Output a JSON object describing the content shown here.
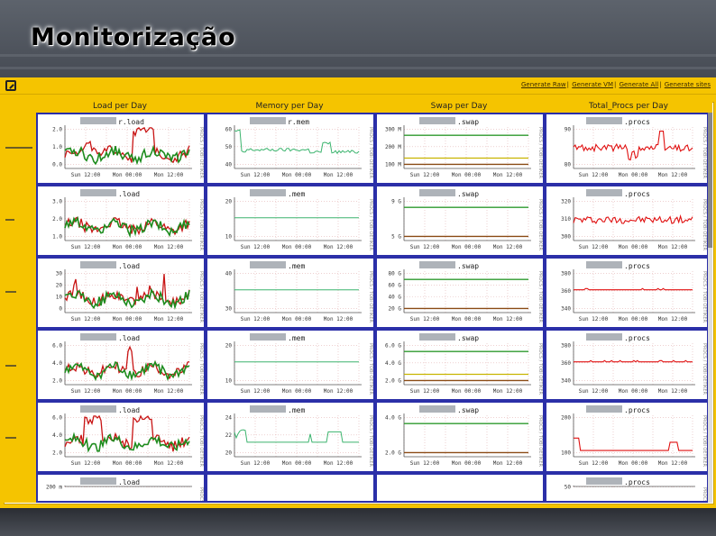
{
  "slide_title": "Monitorização",
  "top_links": [
    "Generate Raw",
    "Generate VM",
    "Generate All",
    "Generate sites"
  ],
  "columns": [
    "Load per Day",
    "Memory per Day",
    "Swap per Day",
    "Total_Procs per Day"
  ],
  "x_ticks": [
    "Sun 12:00",
    "Mon 00:00",
    "Mon 12:00"
  ],
  "side_label": "PROCS / TOBI OETIKER",
  "rows": [
    {
      "load": {
        "label": "r.load",
        "y_ticks": [
          "2.0",
          "1.0",
          "0.0"
        ]
      },
      "mem": {
        "label": "r.mem",
        "y_ticks": [
          "60",
          "50",
          "40"
        ]
      },
      "swap": {
        "label": ".swap",
        "y_ticks": [
          "300 M",
          "200 M",
          "100 M"
        ]
      },
      "procs": {
        "label": ".procs",
        "y_ticks": [
          "90",
          "80"
        ]
      }
    },
    {
      "load": {
        "label": ".load",
        "y_ticks": [
          "3.0",
          "2.0",
          "1.0"
        ]
      },
      "mem": {
        "label": ".mem",
        "y_ticks": [
          "20",
          "10"
        ]
      },
      "swap": {
        "label": ".swap",
        "y_ticks": [
          "9 G",
          "5 G"
        ]
      },
      "procs": {
        "label": ".procs",
        "y_ticks": [
          "320",
          "310",
          "300"
        ]
      }
    },
    {
      "load": {
        "label": ".load",
        "y_ticks": [
          "30",
          "20",
          "10",
          "0"
        ]
      },
      "mem": {
        "label": ".mem",
        "y_ticks": [
          "40",
          "30"
        ]
      },
      "swap": {
        "label": ".swap",
        "y_ticks": [
          "80 G",
          "60 G",
          "40 G",
          "20 G"
        ]
      },
      "procs": {
        "label": ".procs",
        "y_ticks": [
          "380",
          "360",
          "340"
        ]
      }
    },
    {
      "load": {
        "label": ".load",
        "y_ticks": [
          "6.0",
          "4.0",
          "2.0"
        ]
      },
      "mem": {
        "label": ".mem",
        "y_ticks": [
          "20",
          "10"
        ]
      },
      "swap": {
        "label": ".swap",
        "y_ticks": [
          "6.0 G",
          "4.0 G",
          "2.0 G"
        ]
      },
      "procs": {
        "label": ".procs",
        "y_ticks": [
          "380",
          "360",
          "340"
        ]
      }
    },
    {
      "load": {
        "label": ".load",
        "y_ticks": [
          "6.0",
          "4.0",
          "2.0"
        ]
      },
      "mem": {
        "label": ".mem",
        "y_ticks": [
          "24",
          "22",
          "20"
        ]
      },
      "swap": {
        "label": ".swap",
        "y_ticks": [
          "4.0 G",
          "2.0 G"
        ]
      },
      "procs": {
        "label": ".procs",
        "y_ticks": [
          "200",
          "100"
        ]
      }
    },
    {
      "load": {
        "label": ".load",
        "y_ticks": [
          "200 m"
        ]
      },
      "procs": {
        "label": ".procs",
        "y_ticks": [
          "50"
        ]
      }
    }
  ],
  "colors": {
    "frame": "#f5c400",
    "cell_border": "#2b2fa8",
    "load_red": "#c81414",
    "load_green": "#1e8c1e",
    "mem_green": "#3cb46e",
    "swap_green": "#2e9a2e",
    "swap_brown": "#8a4a14",
    "procs_red": "#e01010"
  }
}
